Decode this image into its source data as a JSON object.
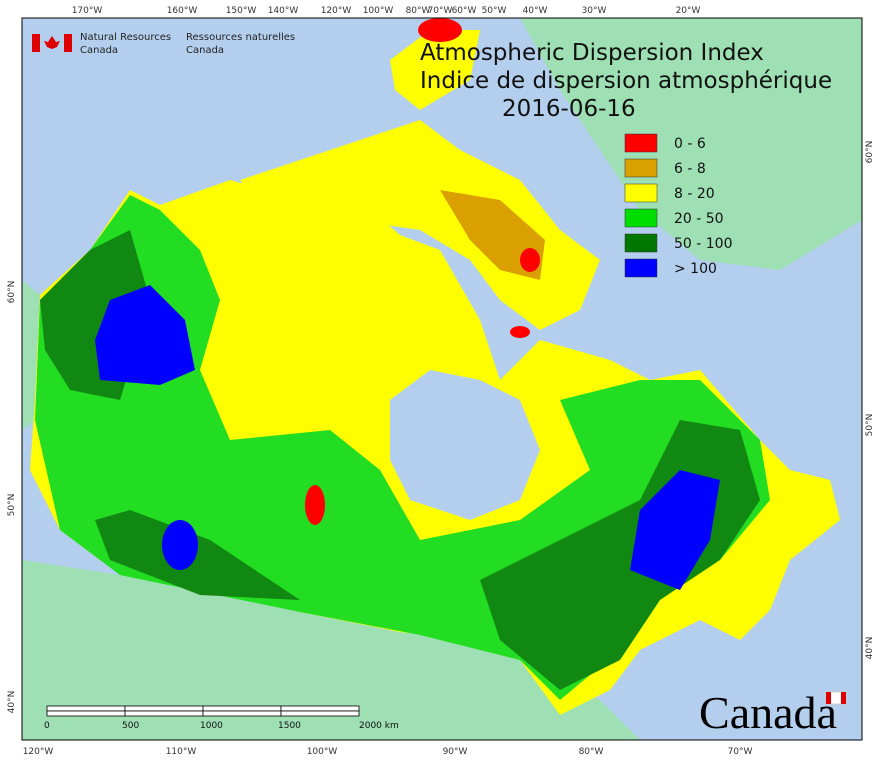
{
  "header": {
    "department_en": [
      "Natural Resources",
      "Canada"
    ],
    "department_fr": [
      "Ressources naturelles",
      "Canada"
    ]
  },
  "title": {
    "line_en": "Atmospheric Dispersion Index",
    "line_fr": "Indice de dispersion atmosphérique",
    "date": "2016-06-16"
  },
  "legend": [
    {
      "label": "0 - 6",
      "color": "#ff0000"
    },
    {
      "label": "6 - 8",
      "color": "#d9a000"
    },
    {
      "label": "8 - 20",
      "color": "#ffff00"
    },
    {
      "label": "20 - 50",
      "color": "#00dd00"
    },
    {
      "label": "50 - 100",
      "color": "#007700"
    },
    {
      "label": "> 100",
      "color": "#0000ff"
    }
  ],
  "graticule": {
    "top": [
      "170°W",
      "160°W",
      "150°W",
      "140°W",
      "120°W",
      "100°W",
      "80°W",
      "70°W",
      "60°W",
      "50°W",
      "40°W",
      "30°W",
      "20°W"
    ],
    "bottom": [
      "120°W",
      "110°W",
      "100°W",
      "90°W",
      "80°W",
      "70°W"
    ],
    "left": [
      "60°N",
      "50°N",
      "40°N"
    ],
    "right": [
      "60°N",
      "50°N",
      "40°N"
    ]
  },
  "scale_bar": [
    "0",
    "500",
    "1000",
    "1500",
    "2000 km"
  ],
  "wordmark": "Canada"
}
